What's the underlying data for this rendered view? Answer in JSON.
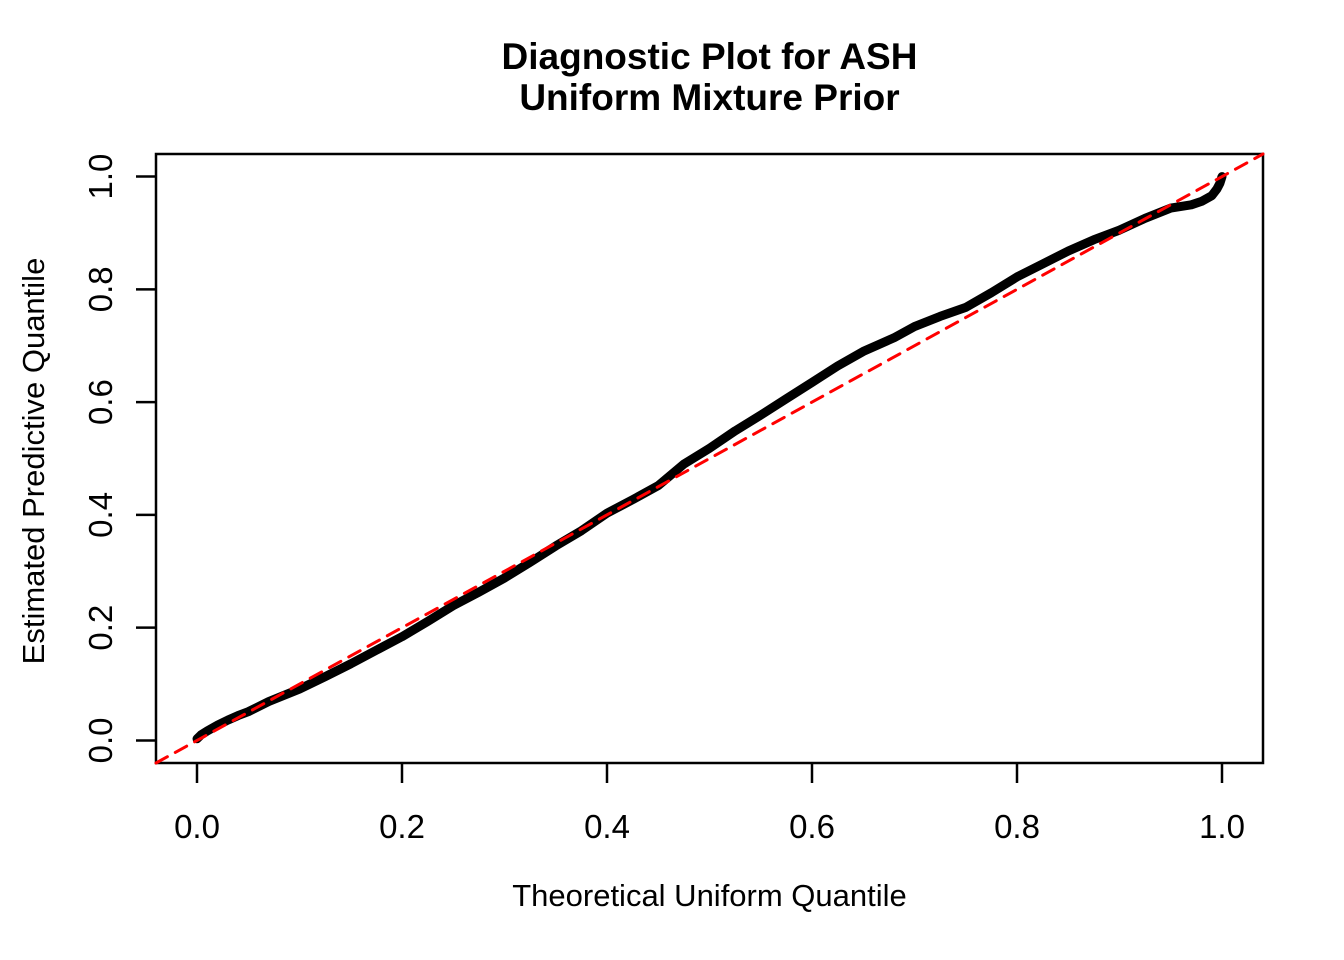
{
  "figure": {
    "title_line1": "Diagnostic Plot for ASH",
    "title_line2": "Uniform Mixture Prior"
  },
  "colors": {
    "curve": "#000000",
    "reference_line": "#FF0000",
    "axis": "#000000",
    "background": "#FFFFFF"
  },
  "chart_data": {
    "type": "line",
    "title": "Diagnostic Plot for ASH\nUniform Mixture Prior",
    "xlabel": "Theoretical Uniform Quantile",
    "ylabel": "Estimated Predictive Quantile",
    "xlim": [
      -0.04,
      1.04
    ],
    "ylim": [
      -0.04,
      1.04
    ],
    "x_ticks": [
      0.0,
      0.2,
      0.4,
      0.6,
      0.8,
      1.0
    ],
    "y_ticks": [
      0.0,
      0.2,
      0.4,
      0.6,
      0.8,
      1.0
    ],
    "x_tick_labels": [
      "0.0",
      "0.2",
      "0.4",
      "0.6",
      "0.8",
      "1.0"
    ],
    "y_tick_labels": [
      "0.0",
      "0.2",
      "0.4",
      "0.6",
      "0.8",
      "1.0"
    ],
    "grid": false,
    "legend": "none",
    "series": [
      {
        "name": "qq-curve",
        "description": "Estimated predictive quantile vs theoretical uniform quantile",
        "color": "#000000",
        "line_width": 9,
        "style": "solid",
        "x": [
          0.0,
          0.004,
          0.01,
          0.02,
          0.03,
          0.04,
          0.05,
          0.07,
          0.1,
          0.125,
          0.15,
          0.175,
          0.2,
          0.225,
          0.25,
          0.275,
          0.3,
          0.325,
          0.35,
          0.375,
          0.4,
          0.425,
          0.45,
          0.475,
          0.5,
          0.525,
          0.55,
          0.575,
          0.6,
          0.625,
          0.65,
          0.665,
          0.68,
          0.7,
          0.725,
          0.75,
          0.775,
          0.8,
          0.825,
          0.85,
          0.875,
          0.9,
          0.925,
          0.95,
          0.97,
          0.98,
          0.99,
          0.995,
          0.998,
          1.0
        ],
        "y": [
          0.003,
          0.01,
          0.017,
          0.027,
          0.036,
          0.044,
          0.051,
          0.069,
          0.091,
          0.113,
          0.136,
          0.16,
          0.184,
          0.211,
          0.239,
          0.263,
          0.288,
          0.316,
          0.345,
          0.372,
          0.403,
          0.427,
          0.452,
          0.49,
          0.518,
          0.549,
          0.577,
          0.606,
          0.635,
          0.664,
          0.69,
          0.702,
          0.714,
          0.734,
          0.752,
          0.768,
          0.794,
          0.822,
          0.845,
          0.868,
          0.888,
          0.905,
          0.926,
          0.944,
          0.95,
          0.956,
          0.966,
          0.978,
          0.988,
          1.0
        ]
      },
      {
        "name": "reference-diagonal",
        "description": "y = x reference line",
        "color": "#FF0000",
        "line_width": 3,
        "style": "dashed",
        "x": [
          -0.04,
          1.04
        ],
        "y": [
          -0.04,
          1.04
        ]
      }
    ]
  }
}
